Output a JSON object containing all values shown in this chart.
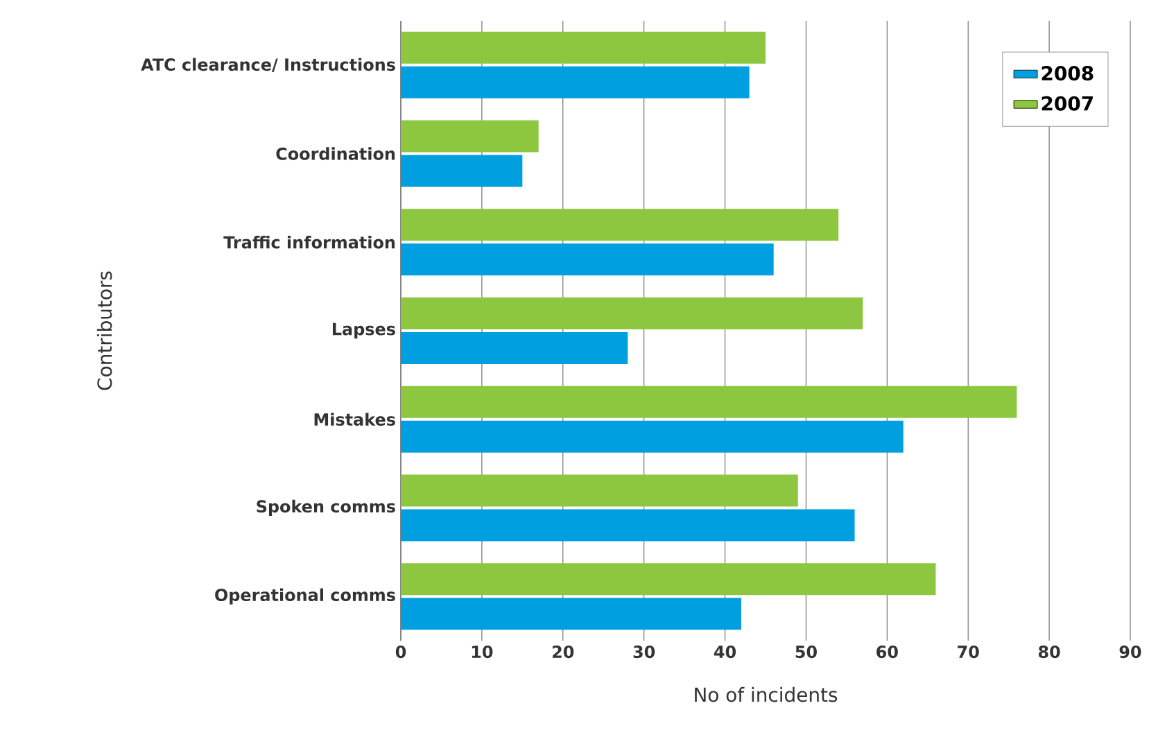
{
  "chart_data": {
    "type": "bar",
    "orientation": "horizontal",
    "xlabel": "No of incidents",
    "ylabel": "Contributors",
    "categories": [
      "ATC clearance/ Instructions",
      "Coordination",
      "Traffic information",
      "Lapses",
      "Mistakes",
      "Spoken comms",
      "Operational comms"
    ],
    "series": [
      {
        "name": "2008",
        "color": "#009fdf",
        "values": [
          43,
          15,
          46,
          28,
          62,
          56,
          42
        ]
      },
      {
        "name": "2007",
        "color": "#8dc63f",
        "values": [
          45,
          17,
          54,
          57,
          76,
          49,
          66
        ]
      }
    ],
    "xlim": [
      0,
      90
    ],
    "xticks": [
      0,
      10,
      20,
      30,
      40,
      50,
      60,
      70,
      80,
      90
    ],
    "grid": "x",
    "legend": "top right"
  }
}
